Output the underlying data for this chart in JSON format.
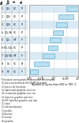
{
  "xlabel": "Number of cycles from 600 to 700 °C",
  "rows": [
    {
      "label": "1",
      "mat": "GJL",
      "proc": "SC",
      "struct": "P",
      "xmin": 75,
      "xmax": 100
    },
    {
      "label": "2",
      "mat": "GJV",
      "proc": "SC",
      "struct": "P",
      "xmin": 60,
      "xmax": 90
    },
    {
      "label": "3",
      "mat": "GJS",
      "proc": "SC",
      "struct": "P",
      "xmin": 55,
      "xmax": 78
    },
    {
      "label": "4",
      "mat": "GJL-Ni",
      "proc": "SC",
      "struct": "P",
      "xmin": 48,
      "xmax": 70
    },
    {
      "label": "5",
      "mat": "GJL",
      "proc": "HT",
      "struct": "F",
      "xmin": 42,
      "xmax": 65
    },
    {
      "label": "6",
      "mat": "SiC-GJL",
      "proc": "SC",
      "struct": "P",
      "xmin": 38,
      "xmax": 58
    },
    {
      "label": "7",
      "mat": "GJV-Ni",
      "proc": "HT",
      "struct": "F",
      "xmin": 28,
      "xmax": 52
    },
    {
      "label": "8",
      "mat": "Cu",
      "proc": "SC",
      "struct": "B",
      "xmin": 10,
      "xmax": 40
    },
    {
      "label": "9",
      "mat": "Ni",
      "proc": "SC",
      "struct": "F",
      "xmin": 2,
      "xmax": 18
    }
  ],
  "col_headers": [
    "No.",
    "Type",
    "Tr.",
    "St."
  ],
  "xtick_labels": [
    "100",
    "5·10²",
    "10³",
    "5·10³",
    "10⁴"
  ],
  "xtick_pos": [
    0,
    25,
    50,
    75,
    100
  ],
  "bar_facecolor": "#b8e0f0",
  "bar_edgecolor": "#6ab0d0",
  "grid_color": "#bbbbbb",
  "row_even_bg": "#daeaf5",
  "row_odd_bg": "#ffffff",
  "header_bg": "#c0d8ee",
  "legend_lines": [
    "Procedure corresponds to automotive benchmarks:",
    "(1) piece presented at the IIF-AFS foundries",
    "(2) pieces for foundries",
    "(a) spheroidal graphite cast iron",
    "(b) vermicular graphite cast iron",
    "(c) lamellar graphite cast iron",
    "(d) (Ni) lamellar graphite cast iron",
    "(1) steel",
    "(2) electrochemical",
    "(3) perlite",
    "(4) bainite",
    "(5) ferrite",
    "(6) pearlite"
  ]
}
